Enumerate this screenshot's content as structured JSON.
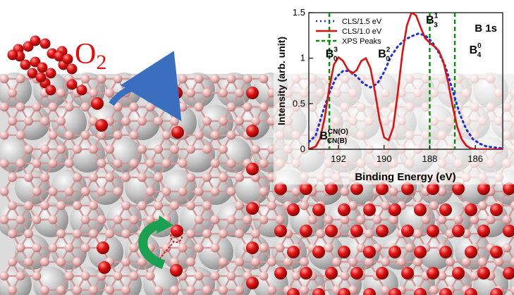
{
  "molecule_label": {
    "main": "O",
    "sub": "2"
  },
  "colors": {
    "oxygen": "#e01010",
    "boron": "#e8b0b0",
    "silver": "#c8c8c8",
    "top_arrow": "#3a6fc0",
    "bottom_arrow": "#1aa050",
    "cls15": "#1a2fe0",
    "cls10": "#e01010",
    "xps": "#0a8a0a"
  },
  "chart_data": {
    "type": "line",
    "title": "B 1s",
    "xlabel": "Binding Energy (eV)",
    "ylabel": "Intensity (arb. unit)",
    "xlim": [
      193.3,
      184.8
    ],
    "ylim": [
      0,
      1.5
    ],
    "x_reversed": true,
    "xticks": [
      "192",
      "190",
      "188",
      "186"
    ],
    "xtick_values": [
      192,
      190,
      188,
      186
    ],
    "yticks": [
      "0",
      "0.5",
      "1",
      "1.5"
    ],
    "ytick_values": [
      0,
      0.5,
      1,
      1.5
    ],
    "legend_position": "top-left",
    "series": [
      {
        "name": "CLS/1.5 eV",
        "style": "dotted",
        "x": [
          193.3,
          193.0,
          192.7,
          192.4,
          192.1,
          191.8,
          191.5,
          191.2,
          190.9,
          190.6,
          190.3,
          190.0,
          189.7,
          189.4,
          189.1,
          188.8,
          188.5,
          188.2,
          187.9,
          187.6,
          187.3,
          187.0,
          186.7,
          186.4,
          186.1,
          185.8,
          185.5,
          185.2,
          184.8
        ],
        "y": [
          0.08,
          0.15,
          0.4,
          0.62,
          0.79,
          0.86,
          0.86,
          0.8,
          0.72,
          0.68,
          0.72,
          0.85,
          1.02,
          1.13,
          1.2,
          1.24,
          1.27,
          1.25,
          1.18,
          1.06,
          0.9,
          0.65,
          0.4,
          0.22,
          0.11,
          0.06,
          0.03,
          0.02,
          0.01
        ]
      },
      {
        "name": "CLS/1.0 eV",
        "style": "solid",
        "x": [
          193.3,
          193.0,
          192.8,
          192.6,
          192.4,
          192.2,
          192.0,
          191.8,
          191.6,
          191.4,
          191.2,
          191.0,
          190.8,
          190.6,
          190.4,
          190.2,
          190.0,
          189.8,
          189.6,
          189.4,
          189.2,
          189.0,
          188.8,
          188.6,
          188.4,
          188.2,
          188.0,
          187.8,
          187.6,
          187.4,
          187.2,
          187.0,
          186.8,
          186.6,
          186.4,
          186.2,
          186.0,
          185.8,
          185.6,
          185.4,
          185.2,
          184.8
        ],
        "y": [
          0.0,
          0.03,
          0.12,
          0.35,
          0.68,
          0.93,
          1.01,
          0.97,
          0.88,
          0.83,
          0.87,
          0.97,
          1.0,
          0.89,
          0.63,
          0.33,
          0.13,
          0.1,
          0.24,
          0.62,
          1.05,
          1.36,
          1.5,
          1.47,
          1.34,
          1.22,
          1.17,
          1.13,
          1.08,
          0.96,
          0.74,
          0.48,
          0.25,
          0.11,
          0.04,
          0.01,
          0.0,
          0.0,
          0.0,
          0.0,
          0.0,
          0.0
        ]
      }
    ],
    "vlines": {
      "name": "XPS Peaks",
      "style": "dashed",
      "x": [
        192.4,
        188.0,
        186.9
      ]
    },
    "annotations": [
      {
        "base": "B",
        "sub": "0",
        "sup": "3",
        "x": 192.3,
        "y": 1.01
      },
      {
        "base": "B",
        "sub": "0",
        "sup": "2",
        "x": 190.0,
        "y": 1.01
      },
      {
        "base": "B",
        "sub": "3",
        "sup": "1",
        "x": 187.9,
        "y": 1.38
      },
      {
        "base": "B",
        "sub": "4",
        "sup": "0",
        "x": 186.0,
        "y": 1.05
      },
      {
        "base": "B",
        "sub": "CN(B)",
        "sup": "CN(O)",
        "x": 192.2,
        "y": 0.11
      }
    ]
  }
}
